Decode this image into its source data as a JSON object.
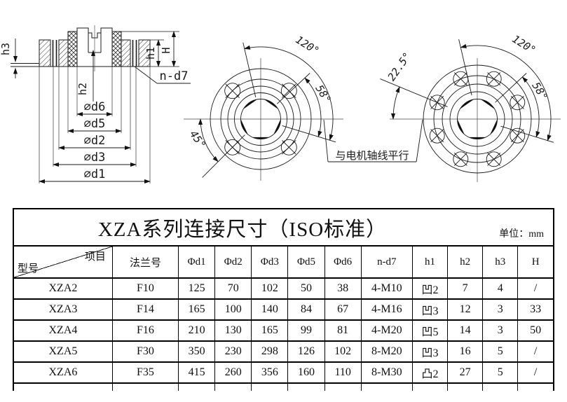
{
  "drawing": {
    "cross_section": {
      "labels": {
        "h3": "h3",
        "h2": "h2",
        "h1": "h1",
        "H": "H",
        "n_d7": "n-d7"
      },
      "dims": [
        "∅d6",
        "∅d5",
        "∅d2",
        "∅d3",
        "∅d1"
      ]
    },
    "flange_4bolt": {
      "angles": {
        "a120": "120°",
        "a58": "58°",
        "a45": "45°"
      }
    },
    "flange_8bolt": {
      "angles": {
        "a120": "120°",
        "a58": "58°",
        "a225": "22.5°"
      }
    },
    "note": "与电机轴线平行"
  },
  "table": {
    "title": "XZA系列连接尺寸（ISO标准）",
    "unit": "单位：mm",
    "corner": {
      "top_right": "项目",
      "bottom_left": "型号"
    },
    "columns": [
      "法兰号",
      "Φd1",
      "Φd2",
      "Φd3",
      "Φd5",
      "Φd6",
      "n-d7",
      "h1",
      "h2",
      "h3",
      "H"
    ],
    "rows": [
      {
        "model": "XZA2",
        "values": [
          "F10",
          "125",
          "70",
          "102",
          "50",
          "38",
          "4-M10",
          "凹2",
          "7",
          "4",
          "/"
        ]
      },
      {
        "model": "XZA3",
        "values": [
          "F14",
          "165",
          "100",
          "140",
          "84",
          "67",
          "4-M16",
          "凹3",
          "12",
          "3",
          "33"
        ]
      },
      {
        "model": "XZA4",
        "values": [
          "F16",
          "210",
          "130",
          "165",
          "99",
          "81",
          "4-M20",
          "凹5",
          "14",
          "3",
          "50"
        ]
      },
      {
        "model": "XZA5",
        "values": [
          "F30",
          "350",
          "230",
          "298",
          "126",
          "102",
          "8-M20",
          "凹3",
          "16",
          "5",
          "/"
        ]
      },
      {
        "model": "XZA6",
        "values": [
          "F35",
          "415",
          "260",
          "356",
          "160",
          "110",
          "8-M30",
          "凸2",
          "27",
          "5",
          "/"
        ]
      }
    ]
  }
}
